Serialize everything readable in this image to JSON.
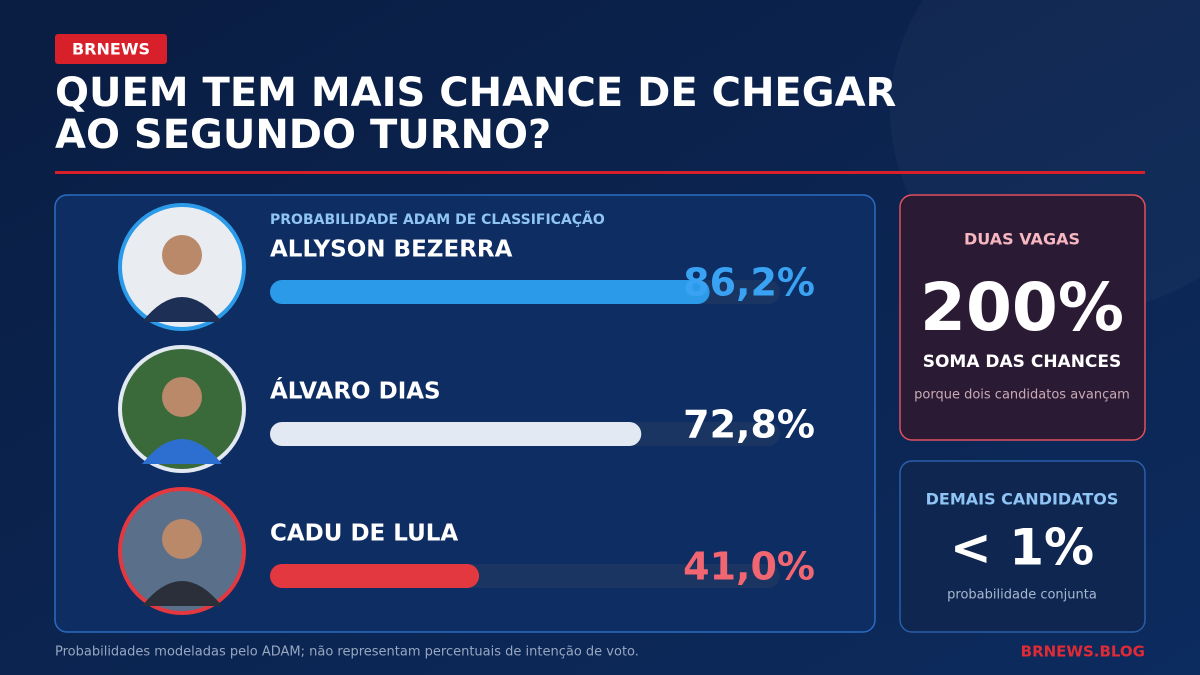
{
  "header": {
    "badge": "BRNEWS",
    "title_lines": [
      "QUEM TEM MAIS CHANCE DE CHEGAR",
      "AO SEGUNDO TURNO?"
    ]
  },
  "chart_data": {
    "type": "bar",
    "subtitle": "PROBABILIDADE ADAM DE CLASSIFICAÇÃO",
    "categories": [
      "ALLYSON BEZERRA",
      "ÁLVARO DIAS",
      "CADU DE LULA"
    ],
    "values": [
      86.2,
      72.8,
      41.0
    ],
    "value_labels": [
      "86,2%",
      "72,8%",
      "41,0%"
    ],
    "colors": [
      "#2b9be9",
      "#e3e9f3",
      "#e3383f"
    ],
    "label_colors": [
      "#3aa2f2",
      "#ffffff",
      "#f26672"
    ],
    "xlim": [
      0,
      100
    ]
  },
  "panels": [
    {
      "kicker": "DUAS VAGAS",
      "value": "200%",
      "caption": "SOMA DAS CHANCES",
      "note": "porque dois candidatos avançam"
    },
    {
      "kicker": "DEMAIS CANDIDATOS",
      "value": "< 1%",
      "note": "probabilidade conjunta"
    }
  ],
  "footer": {
    "note": "Probabilidades modeladas pelo ADAM; não representam percentuais de intenção de voto.",
    "site": "BRNEWS.BLOG"
  }
}
